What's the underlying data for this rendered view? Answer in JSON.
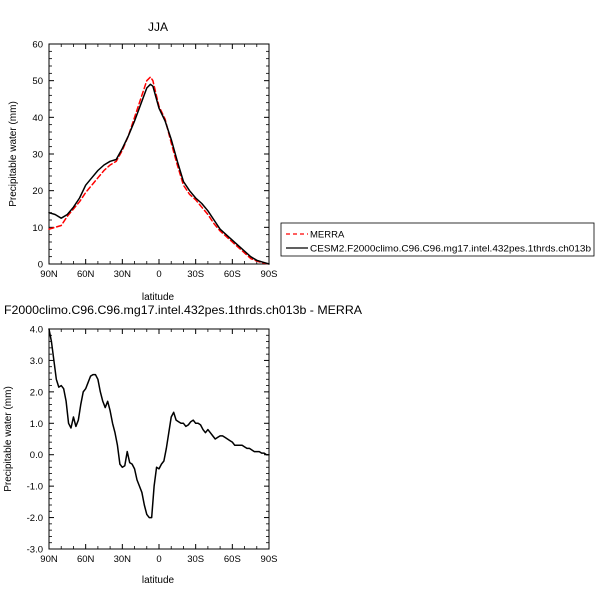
{
  "chart_data": [
    {
      "type": "line",
      "title": "JJA",
      "xlabel": "latitude",
      "ylabel": "Precipitable water (mm)",
      "xlim": [
        90,
        -90
      ],
      "ylim": [
        0,
        60
      ],
      "x_ticks": [
        90,
        60,
        30,
        0,
        -30,
        -60,
        -90
      ],
      "x_tick_labels": [
        "90N",
        "60N",
        "30N",
        "0",
        "30S",
        "60S",
        "90S"
      ],
      "y_ticks": [
        0,
        10,
        20,
        30,
        40,
        50,
        60
      ],
      "y_tick_labels": [
        "0",
        "10",
        "20",
        "30",
        "40",
        "50",
        "60"
      ],
      "grid": false,
      "legend": "right",
      "series": [
        {
          "name": "MERRA",
          "color": "#ff0000",
          "dash": "dashed",
          "x": [
            90,
            85,
            80,
            75,
            70,
            65,
            60,
            55,
            50,
            45,
            40,
            35,
            30,
            25,
            20,
            15,
            10,
            7,
            5,
            0,
            -5,
            -10,
            -15,
            -20,
            -25,
            -30,
            -35,
            -40,
            -45,
            -50,
            -55,
            -60,
            -65,
            -70,
            -75,
            -80,
            -85,
            -90
          ],
          "values": [
            9.5,
            10,
            10.5,
            13,
            15,
            17,
            19.5,
            21.5,
            23.5,
            25.5,
            27,
            28,
            31,
            35,
            40,
            45,
            50,
            51,
            50,
            43,
            39.5,
            33,
            27,
            21.5,
            19,
            17.5,
            15.5,
            13.5,
            11,
            9,
            7.5,
            6,
            4.5,
            3,
            1.5,
            0.8,
            0.3,
            0
          ]
        },
        {
          "name": "CESM2.F2000climo.C96.C96.mg17.intel.432pes.1thrds.ch013b",
          "color": "#000000",
          "dash": "solid",
          "x": [
            90,
            85,
            80,
            75,
            70,
            65,
            60,
            55,
            50,
            45,
            40,
            35,
            30,
            25,
            20,
            15,
            10,
            7,
            5,
            0,
            -5,
            -10,
            -15,
            -20,
            -25,
            -30,
            -35,
            -40,
            -45,
            -50,
            -55,
            -60,
            -65,
            -70,
            -75,
            -80,
            -85,
            -90
          ],
          "values": [
            14,
            13.5,
            12.5,
            13.5,
            15.5,
            18,
            21.5,
            23.5,
            25.5,
            27,
            28,
            28.5,
            31.5,
            35,
            39,
            43.5,
            48,
            49,
            48.5,
            42.5,
            39,
            34,
            28,
            22.5,
            20,
            18,
            16.5,
            14.5,
            12,
            9.5,
            8,
            6.5,
            5,
            3.5,
            2,
            1,
            0.5,
            0
          ]
        }
      ]
    },
    {
      "type": "line",
      "title": "F2000climo.C96.C96.mg17.intel.432pes.1thrds.ch013b - MERRA",
      "xlabel": "latitude",
      "ylabel": "Precipitable water (mm)",
      "xlim": [
        90,
        -90
      ],
      "ylim": [
        -3.0,
        4.0
      ],
      "x_ticks": [
        90,
        60,
        30,
        0,
        -30,
        -60,
        -90
      ],
      "x_tick_labels": [
        "90N",
        "60N",
        "30N",
        "0",
        "30S",
        "60S",
        "90S"
      ],
      "y_ticks": [
        -3,
        -2,
        -1,
        0,
        1,
        2,
        3,
        4
      ],
      "y_tick_labels": [
        "-3.0",
        "-2.0",
        "-1.0",
        "0.0",
        "1.0",
        "2.0",
        "3.0",
        "4.0"
      ],
      "grid": false,
      "series": [
        {
          "color": "#000000",
          "dash": "solid",
          "x": [
            90,
            88,
            86,
            84,
            82,
            80,
            78,
            76,
            74,
            72,
            70,
            68,
            66,
            64,
            62,
            60,
            58,
            56,
            54,
            52,
            50,
            48,
            46,
            44,
            42,
            40,
            38,
            36,
            34,
            32,
            30,
            28,
            26,
            24,
            22,
            20,
            18,
            16,
            14,
            12,
            10,
            8,
            6,
            4,
            2,
            0,
            -2,
            -4,
            -6,
            -8,
            -10,
            -12,
            -14,
            -16,
            -18,
            -20,
            -22,
            -24,
            -26,
            -28,
            -30,
            -32,
            -34,
            -36,
            -38,
            -40,
            -42,
            -44,
            -46,
            -48,
            -50,
            -52,
            -54,
            -56,
            -58,
            -60,
            -62,
            -64,
            -66,
            -68,
            -70,
            -72,
            -74,
            -76,
            -78,
            -80,
            -82,
            -84,
            -86,
            -88,
            -90
          ],
          "values": [
            4.0,
            3.6,
            3.0,
            2.4,
            2.15,
            2.2,
            2.1,
            1.7,
            1.0,
            0.85,
            1.2,
            0.9,
            1.1,
            1.6,
            2.0,
            2.1,
            2.3,
            2.5,
            2.55,
            2.55,
            2.4,
            2.0,
            1.7,
            1.5,
            1.7,
            1.4,
            1.0,
            0.7,
            0.3,
            -0.3,
            -0.4,
            -0.35,
            0.1,
            -0.25,
            -0.3,
            -0.45,
            -0.8,
            -1.0,
            -1.2,
            -1.6,
            -1.9,
            -2.0,
            -2.0,
            -1.0,
            -0.4,
            -0.45,
            -0.3,
            -0.2,
            0.2,
            0.7,
            1.2,
            1.35,
            1.1,
            1.05,
            1.0,
            1.0,
            0.9,
            0.95,
            1.05,
            1.1,
            1.0,
            1.0,
            0.95,
            0.8,
            0.7,
            0.8,
            0.7,
            0.6,
            0.5,
            0.55,
            0.6,
            0.6,
            0.55,
            0.5,
            0.45,
            0.4,
            0.3,
            0.3,
            0.3,
            0.3,
            0.25,
            0.2,
            0.2,
            0.15,
            0.1,
            0.1,
            0.1,
            0.05,
            0.05,
            0.0,
            0.0
          ]
        }
      ]
    }
  ]
}
